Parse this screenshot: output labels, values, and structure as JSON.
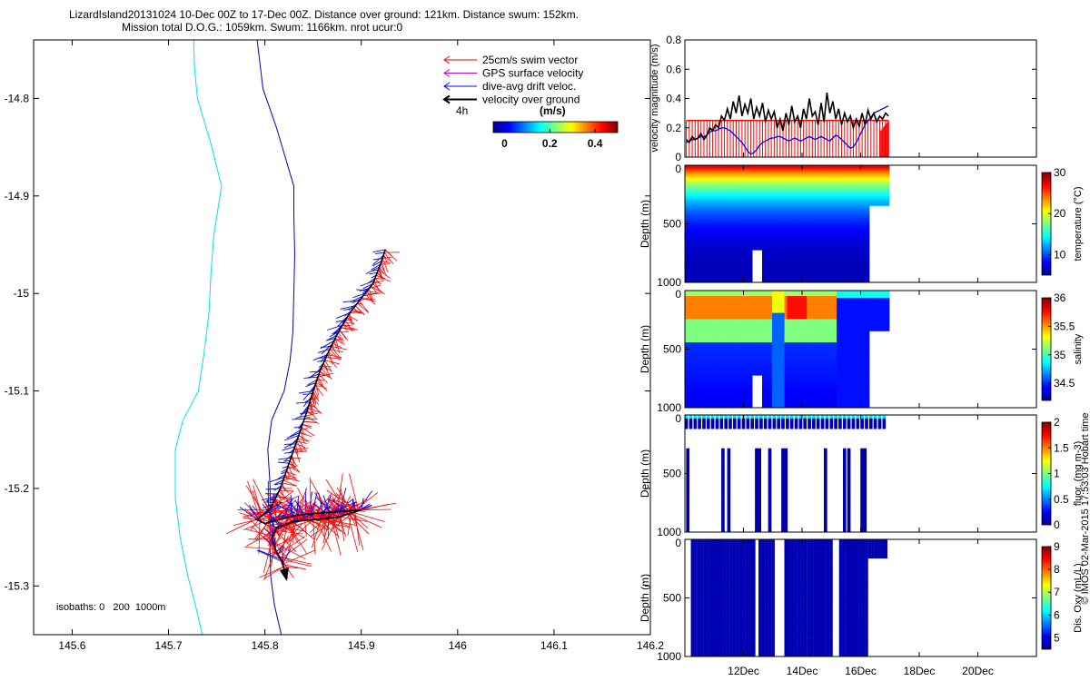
{
  "header": {
    "title_line1": "LizardIsland20131024 10-Dec 00Z to 17-Dec 00Z. Distance over ground: 121km. Distance swum: 152km.",
    "title_line2": "Mission total D.O.G.: 1059km. Swum: 1166km. nrot ucur:0"
  },
  "credit": "© IMOS 02-Mar-2015 17:53:03 Hobart time",
  "colors": {
    "swim": "#ff0000",
    "gps": "#cc00cc",
    "drift": "#0000ff",
    "ground": "#000000",
    "isobath_0": "#0000cc",
    "isobath_200": "#00e5e5",
    "ocean_fill": "#ffffff"
  },
  "chart_data": [
    {
      "type": "scatter",
      "id": "map",
      "legend": [
        {
          "label": "25cm/s swim vector",
          "color": "#ff0000"
        },
        {
          "label": "GPS surface velocity",
          "color": "#cc00cc"
        },
        {
          "label": "dive-avg drift veloc.",
          "color": "#0000ff"
        },
        {
          "label": "velocity over ground",
          "color": "#000000"
        }
      ],
      "scale_label": "4h",
      "colorbar": {
        "label": "(m/s)",
        "ticks": [
          "0",
          "0.2",
          "0.4"
        ],
        "range": [
          -0.05,
          0.5
        ]
      },
      "isobath_label": "isobaths: 0   200  1000m",
      "xlim": [
        145.56,
        146.2
      ],
      "ylim": [
        -15.35,
        -14.74
      ],
      "xticks": [
        "145.6",
        "145.7",
        "145.8",
        "145.9",
        "146",
        "146.1",
        "146.2"
      ],
      "xtick_values": [
        145.6,
        145.7,
        145.8,
        145.9,
        146.0,
        146.1,
        146.2
      ],
      "yticks": [
        "-14.8",
        "-14.9",
        "-15",
        "-15.1",
        "-15.2",
        "-15.3"
      ],
      "ytick_values": [
        -14.8,
        -14.9,
        -15.0,
        -15.1,
        -15.2,
        -15.3
      ],
      "isobath_0m": [
        [
          145.817,
          -15.35
        ],
        [
          145.81,
          -15.32
        ],
        [
          145.806,
          -15.29
        ],
        [
          145.805,
          -15.25
        ],
        [
          145.806,
          -15.22
        ],
        [
          145.805,
          -15.19
        ],
        [
          145.803,
          -15.16
        ],
        [
          145.807,
          -15.13
        ],
        [
          145.82,
          -15.1
        ],
        [
          145.826,
          -15.07
        ],
        [
          145.829,
          -15.04
        ],
        [
          145.83,
          -15.0
        ],
        [
          145.831,
          -14.96
        ],
        [
          145.83,
          -14.92
        ],
        [
          145.83,
          -14.89
        ],
        [
          145.812,
          -14.83
        ],
        [
          145.798,
          -14.79
        ],
        [
          145.792,
          -14.74
        ]
      ],
      "isobath_200m": [
        [
          145.735,
          -15.35
        ],
        [
          145.728,
          -15.32
        ],
        [
          145.72,
          -15.29
        ],
        [
          145.712,
          -15.25
        ],
        [
          145.707,
          -15.21
        ],
        [
          145.707,
          -15.16
        ],
        [
          145.715,
          -15.13
        ],
        [
          145.731,
          -15.1
        ],
        [
          145.737,
          -15.06
        ],
        [
          145.742,
          -15.02
        ],
        [
          145.744,
          -14.98
        ],
        [
          145.747,
          -14.94
        ],
        [
          145.755,
          -14.89
        ],
        [
          145.745,
          -14.85
        ],
        [
          145.73,
          -14.8
        ],
        [
          145.727,
          -14.77
        ],
        [
          145.726,
          -14.74
        ]
      ],
      "track": [
        [
          145.925,
          -14.955
        ],
        [
          145.92,
          -14.97
        ],
        [
          145.912,
          -14.99
        ],
        [
          145.9,
          -15.005
        ],
        [
          145.888,
          -15.02
        ],
        [
          145.876,
          -15.04
        ],
        [
          145.866,
          -15.06
        ],
        [
          145.857,
          -15.08
        ],
        [
          145.85,
          -15.1
        ],
        [
          145.844,
          -15.12
        ],
        [
          145.837,
          -15.14
        ],
        [
          145.83,
          -15.16
        ],
        [
          145.823,
          -15.18
        ],
        [
          145.816,
          -15.2
        ],
        [
          145.806,
          -15.22
        ],
        [
          145.792,
          -15.232
        ],
        [
          145.8,
          -15.236
        ],
        [
          145.815,
          -15.232
        ],
        [
          145.83,
          -15.228
        ],
        [
          145.845,
          -15.226
        ],
        [
          145.86,
          -15.225
        ],
        [
          145.875,
          -15.224
        ],
        [
          145.89,
          -15.223
        ],
        [
          145.9,
          -15.222
        ],
        [
          145.875,
          -15.23
        ],
        [
          145.85,
          -15.232
        ],
        [
          145.83,
          -15.234
        ],
        [
          145.812,
          -15.24
        ],
        [
          145.807,
          -15.252
        ],
        [
          145.812,
          -15.265
        ],
        [
          145.818,
          -15.275
        ],
        [
          145.82,
          -15.283
        ]
      ]
    },
    {
      "type": "line",
      "id": "velocity",
      "ylabel": "velocity magnitude (m/s)",
      "ylim": [
        0,
        0.8
      ],
      "yticks": [
        "0",
        "0.2",
        "0.4",
        "0.6",
        "0.8"
      ],
      "ytick_values": [
        0,
        0.2,
        0.4,
        0.6,
        0.8
      ],
      "xlim": [
        10.0,
        22.0
      ],
      "series": [
        {
          "color": "#ff0000",
          "y": [
            0.25,
            0.25,
            0.25,
            0.25,
            0.25,
            0.25,
            0.25,
            0.25,
            0.25,
            0.25,
            0.25,
            0.25,
            0.25,
            0.25,
            0.25,
            0.25,
            0.25,
            0.25,
            0.25,
            0.25,
            0.25,
            0.25,
            0.25,
            0.25,
            0.25,
            0.25,
            0.25,
            0.25,
            0.25,
            0.25,
            0.25,
            0.25,
            0.25,
            0.25,
            0.25,
            0.25,
            0.25,
            0.25,
            0.25,
            0.25,
            0.25,
            0.25,
            0.25,
            0.25,
            0.25,
            0.25,
            0.25,
            0.25,
            0.25,
            0.25,
            0.25,
            0.25,
            0.25,
            0.25,
            0.25,
            0.25,
            0.25,
            0.25,
            0.25,
            0.25,
            0.25,
            0.25,
            0.25,
            0.25,
            0.25,
            0.25,
            0.25,
            0.25,
            0.25,
            0.25
          ]
        },
        {
          "color": "#0000ff",
          "y": [
            0.1,
            0.11,
            0.12,
            0.12,
            0.13,
            0.14,
            0.14,
            0.15,
            0.17,
            0.18,
            0.18,
            0.19,
            0.2,
            0.2,
            0.19,
            0.18,
            0.16,
            0.14,
            0.12,
            0.1,
            0.07,
            0.04,
            0.02,
            0.03,
            0.05,
            0.08,
            0.1,
            0.11,
            0.12,
            0.13,
            0.13,
            0.14,
            0.14,
            0.13,
            0.12,
            0.11,
            0.12,
            0.13,
            0.12,
            0.11,
            0.12,
            0.13,
            0.14,
            0.13,
            0.12,
            0.13,
            0.14,
            0.13,
            0.12,
            0.11,
            0.13,
            0.15,
            0.14,
            0.12,
            0.1,
            0.08,
            0.06,
            0.07,
            0.1,
            0.14,
            0.18,
            0.22,
            0.25,
            0.27,
            0.3,
            0.31,
            0.32,
            0.33,
            0.34,
            0.35
          ]
        },
        {
          "color": "#000000",
          "y": [
            0.12,
            0.1,
            0.14,
            0.12,
            0.13,
            0.16,
            0.12,
            0.15,
            0.2,
            0.18,
            0.22,
            0.2,
            0.28,
            0.25,
            0.33,
            0.26,
            0.38,
            0.3,
            0.42,
            0.28,
            0.36,
            0.3,
            0.4,
            0.26,
            0.34,
            0.28,
            0.37,
            0.24,
            0.32,
            0.26,
            0.31,
            0.2,
            0.26,
            0.18,
            0.3,
            0.22,
            0.35,
            0.24,
            0.28,
            0.2,
            0.33,
            0.26,
            0.4,
            0.28,
            0.31,
            0.22,
            0.37,
            0.24,
            0.44,
            0.3,
            0.38,
            0.26,
            0.33,
            0.22,
            0.3,
            0.24,
            0.28,
            0.2,
            0.26,
            0.21,
            0.3,
            0.22,
            0.32,
            0.26,
            0.3,
            0.24,
            0.28,
            0.26,
            0.3,
            0.28
          ]
        }
      ]
    },
    {
      "type": "heatmap",
      "id": "temperature",
      "ylabel": "Depth (m)",
      "colorbar_label": "temperature (°C)",
      "ylim": [
        1000,
        0
      ],
      "yticks": [
        "0",
        "500",
        "1000"
      ],
      "ytick_values": [
        0,
        500,
        1000
      ],
      "colorbar_range": [
        5,
        30
      ],
      "colorbar_ticks": [
        "10",
        "20",
        "30"
      ],
      "colorbar_tick_values": [
        10,
        20,
        30
      ]
    },
    {
      "type": "heatmap",
      "id": "salinity",
      "ylabel": "Depth (m)",
      "colorbar_label": "salinity",
      "ylim": [
        1000,
        0
      ],
      "yticks": [
        "0",
        "500",
        "1000"
      ],
      "ytick_values": [
        0,
        500,
        1000
      ],
      "colorbar_range": [
        34.2,
        36
      ],
      "colorbar_ticks": [
        "34.5",
        "35",
        "35.5",
        "36"
      ],
      "colorbar_tick_values": [
        34.5,
        35,
        35.5,
        36
      ]
    },
    {
      "type": "heatmap",
      "id": "fluor",
      "ylabel": "Depth (m)",
      "colorbar_label": "fluor. (mg m-3)",
      "ylim": [
        1000,
        0
      ],
      "yticks": [
        "0",
        "500",
        "1000"
      ],
      "ytick_values": [
        0,
        500,
        1000
      ],
      "colorbar_range": [
        0,
        2
      ],
      "colorbar_ticks": [
        "0",
        "0.5",
        "1",
        "1.5",
        "2"
      ],
      "colorbar_tick_values": [
        0,
        0.5,
        1,
        1.5,
        2
      ]
    },
    {
      "type": "heatmap",
      "id": "oxygen",
      "ylabel": "Depth (m)",
      "colorbar_label": "Dis. Oxy (mL/L)",
      "ylim": [
        1000,
        0
      ],
      "yticks": [
        "0",
        "500",
        "1000"
      ],
      "ytick_values": [
        0,
        500,
        1000
      ],
      "xlim": [
        10.0,
        22.0
      ],
      "xticks": [
        "12Dec",
        "14Dec",
        "16Dec",
        "18Dec",
        "20Dec"
      ],
      "xtick_values": [
        12,
        14,
        16,
        18,
        20
      ],
      "colorbar_range": [
        4.5,
        9
      ],
      "colorbar_ticks": [
        "5",
        "6",
        "7",
        "8",
        "9"
      ],
      "colorbar_tick_values": [
        5,
        6,
        7,
        8,
        9
      ]
    }
  ]
}
